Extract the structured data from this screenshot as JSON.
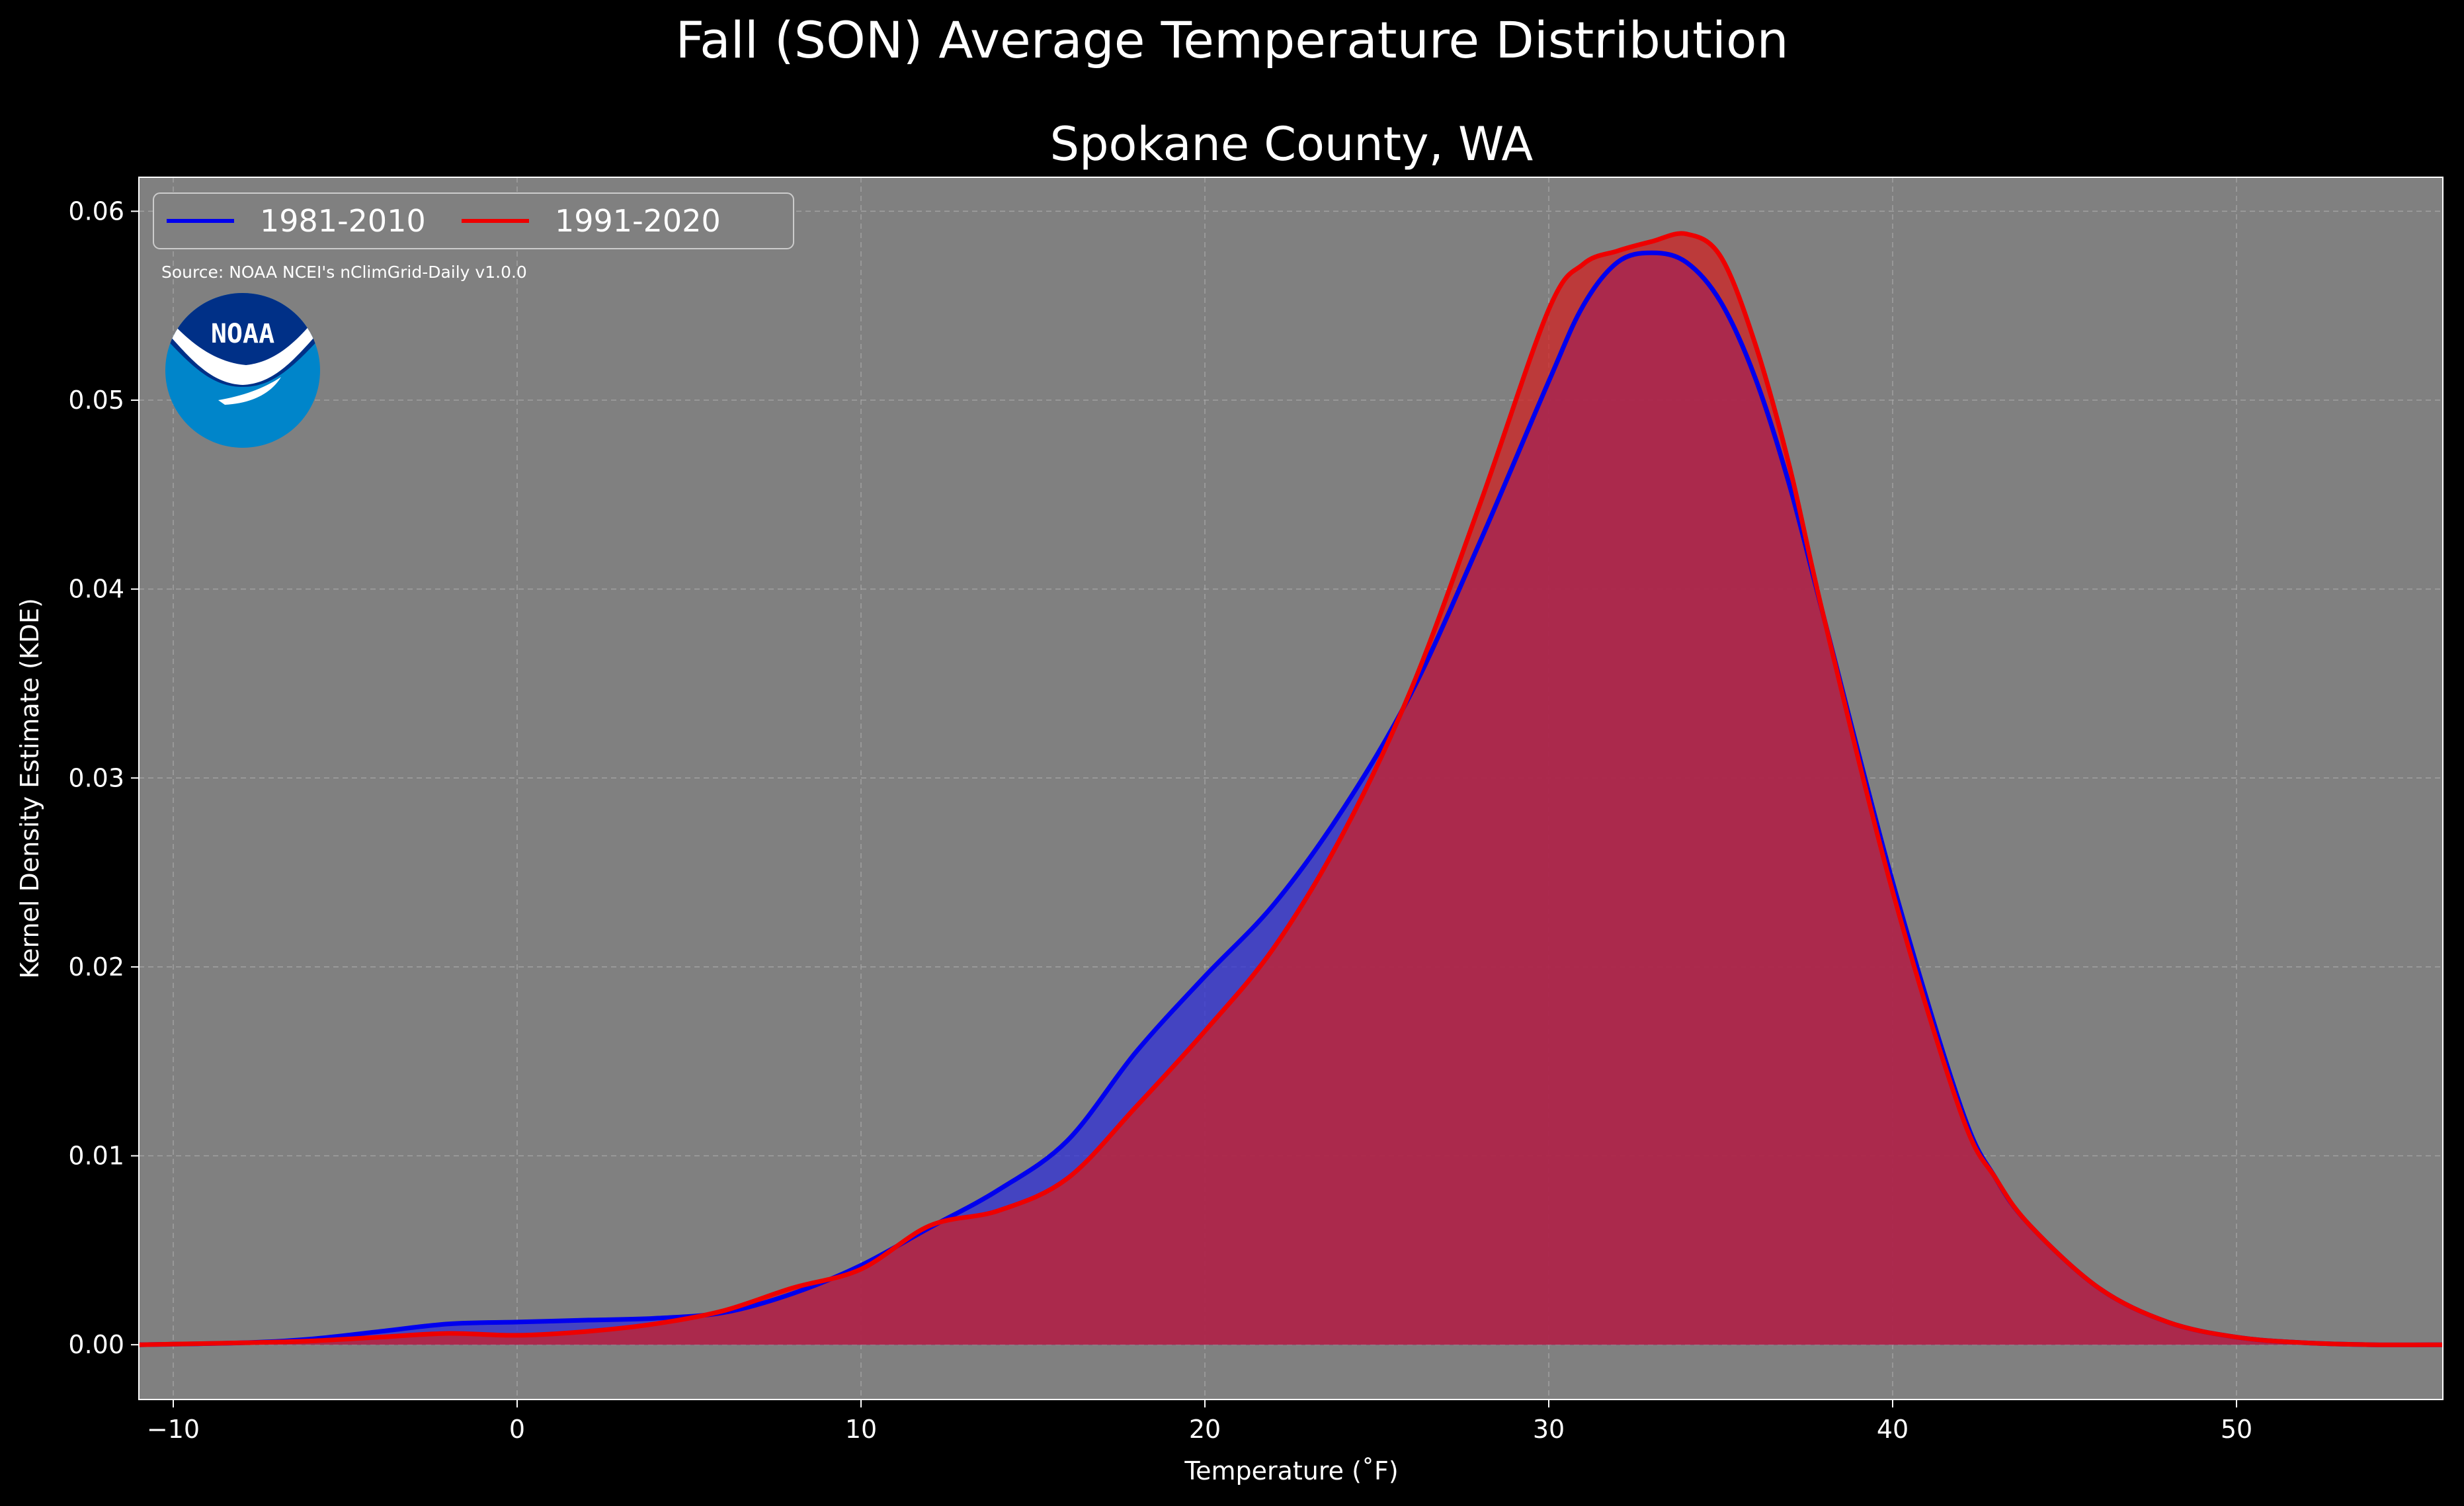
{
  "chart_data": {
    "type": "area",
    "title": "Fall (SON) Average Temperature Distribution",
    "subtitle": "Spokane County, WA",
    "xlabel": "Temperature (˚F)",
    "ylabel": "Kernel Density Estimate (KDE)",
    "xlim": [
      -11,
      56
    ],
    "ylim": [
      -0.0029,
      0.0618
    ],
    "xticks": [
      -10,
      0,
      10,
      20,
      30,
      40,
      50
    ],
    "yticks": [
      0.0,
      0.01,
      0.02,
      0.03,
      0.04,
      0.05,
      0.06
    ],
    "xtick_labels": [
      "−10",
      "0",
      "10",
      "20",
      "30",
      "40",
      "50"
    ],
    "ytick_labels": [
      "0.00",
      "0.01",
      "0.02",
      "0.03",
      "0.04",
      "0.05",
      "0.06"
    ],
    "grid": true,
    "legend_position": "top-left",
    "annotation": "Source: NOAA NCEI's nClimGrid-Daily v1.0.0",
    "logo_text": "NOAA",
    "colors": {
      "background": "#000000",
      "plot_background": "#808080",
      "series_1": "#0000ee",
      "series_1_fill": "#2d2dd9",
      "series_2": "#ee0000",
      "series_2_fill": "#d21e1e",
      "logo_dark": "#003087",
      "logo_light": "#0085ca"
    },
    "series": [
      {
        "name": "1981-2010",
        "x": [
          -11,
          -8,
          -6,
          -4,
          -2,
          0,
          2,
          4,
          6,
          8,
          10,
          12,
          14,
          16,
          18,
          20,
          22,
          24,
          26,
          28,
          30,
          31,
          32,
          33,
          34,
          35,
          36,
          37,
          38,
          40,
          42,
          43,
          44,
          46,
          48,
          50,
          52,
          54,
          56
        ],
        "y": [
          0,
          0.0001,
          0.0003,
          0.0007,
          0.0011,
          0.0012,
          0.0013,
          0.0014,
          0.0017,
          0.0027,
          0.0042,
          0.0062,
          0.0082,
          0.0108,
          0.0155,
          0.0195,
          0.0233,
          0.0283,
          0.0345,
          0.0425,
          0.051,
          0.055,
          0.0573,
          0.0578,
          0.0573,
          0.0552,
          0.0512,
          0.0455,
          0.0385,
          0.0245,
          0.0125,
          0.0088,
          0.0063,
          0.003,
          0.0012,
          0.0004,
          0.0001,
          0,
          0
        ]
      },
      {
        "name": "1991-2020",
        "x": [
          -11,
          -8,
          -6,
          -4,
          -2,
          0,
          2,
          4,
          6,
          8,
          10,
          12,
          14,
          16,
          18,
          20,
          22,
          24,
          26,
          28,
          30,
          31,
          32,
          33,
          34,
          35,
          36,
          37,
          38,
          40,
          42,
          43,
          44,
          46,
          48,
          50,
          52,
          54,
          56
        ],
        "y": [
          0,
          0.0001,
          0.0002,
          0.0004,
          0.0006,
          0.0005,
          0.0007,
          0.0011,
          0.0018,
          0.003,
          0.004,
          0.0063,
          0.0071,
          0.0088,
          0.0126,
          0.0166,
          0.021,
          0.027,
          0.0347,
          0.0445,
          0.0548,
          0.0572,
          0.0579,
          0.0584,
          0.0588,
          0.0576,
          0.053,
          0.0465,
          0.0385,
          0.024,
          0.0122,
          0.0088,
          0.0063,
          0.003,
          0.0012,
          0.0004,
          0.0001,
          0,
          0
        ]
      }
    ]
  }
}
